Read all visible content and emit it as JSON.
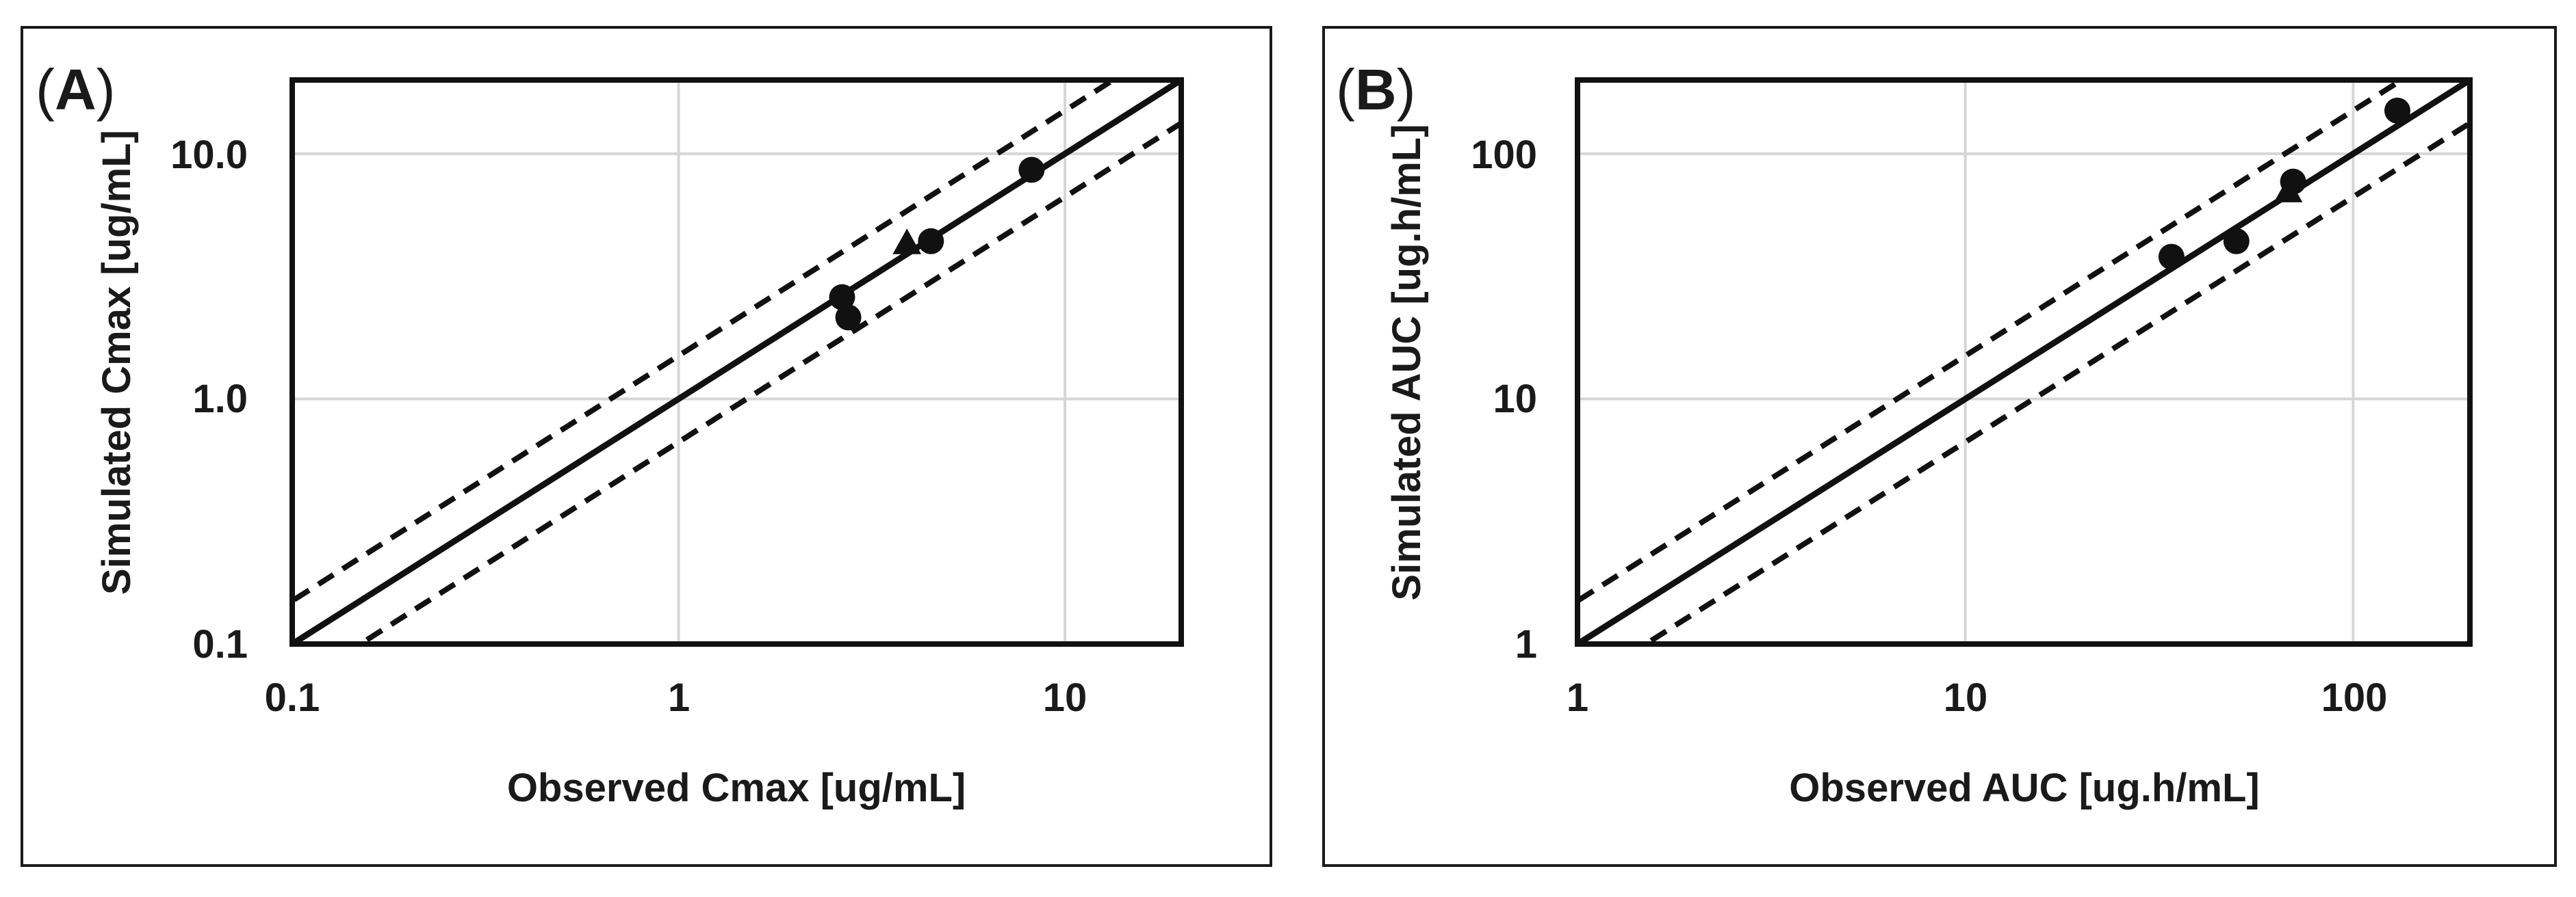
{
  "figure": {
    "panels": [
      {
        "letter": "A",
        "open": "(",
        "close": ")"
      },
      {
        "letter": "B",
        "open": "(",
        "close": ")"
      }
    ]
  },
  "chart_data": [
    {
      "type": "scatter",
      "panel": "A",
      "scale": "log-log",
      "xlabel": "Observed Cmax [ug/mL]",
      "ylabel": "Simulated Cmax [ug/mL]",
      "xlim": [
        0.1,
        20
      ],
      "ylim": [
        0.1,
        20
      ],
      "xticks": [
        0.1,
        1,
        10
      ],
      "xtick_labels": [
        "0.1",
        "1",
        "10"
      ],
      "yticks": [
        0.1,
        1,
        10
      ],
      "ytick_labels": [
        "0.1",
        "1.0",
        "10.0"
      ],
      "grid": true,
      "reference_lines": [
        {
          "name": "line-of-unity",
          "style": "solid",
          "factor": 1
        },
        {
          "name": "upper-1.5-fold",
          "style": "dashed",
          "factor": 1.5
        },
        {
          "name": "lower-1.5-fold",
          "style": "dashed",
          "factor": 0.6667
        }
      ],
      "series": [
        {
          "name": "circles",
          "marker": "circle",
          "points": [
            {
              "x": 2.65,
              "y": 2.6
            },
            {
              "x": 2.75,
              "y": 2.15
            },
            {
              "x": 4.5,
              "y": 4.4
            },
            {
              "x": 8.2,
              "y": 8.6
            }
          ]
        },
        {
          "name": "triangles",
          "marker": "triangle",
          "points": [
            {
              "x": 3.9,
              "y": 4.3
            }
          ]
        }
      ]
    },
    {
      "type": "scatter",
      "panel": "B",
      "scale": "log-log",
      "xlabel": "Observed AUC [ug.h/mL]",
      "ylabel": "Simulated AUC [ug.h/mL]",
      "xlim": [
        1,
        200
      ],
      "ylim": [
        1,
        200
      ],
      "xticks": [
        1,
        10,
        100
      ],
      "xtick_labels": [
        "1",
        "10",
        "100"
      ],
      "yticks": [
        1,
        10,
        100
      ],
      "ytick_labels": [
        "1",
        "10",
        "100"
      ],
      "grid": true,
      "reference_lines": [
        {
          "name": "line-of-unity",
          "style": "solid",
          "factor": 1
        },
        {
          "name": "upper-1.5-fold",
          "style": "dashed",
          "factor": 1.5
        },
        {
          "name": "lower-1.5-fold",
          "style": "dashed",
          "factor": 0.6667
        }
      ],
      "series": [
        {
          "name": "circles",
          "marker": "circle",
          "points": [
            {
              "x": 34,
              "y": 38
            },
            {
              "x": 50,
              "y": 44
            },
            {
              "x": 70,
              "y": 77
            },
            {
              "x": 130,
              "y": 150
            }
          ]
        },
        {
          "name": "triangles",
          "marker": "triangle",
          "points": [
            {
              "x": 68,
              "y": 70
            }
          ]
        }
      ]
    }
  ]
}
